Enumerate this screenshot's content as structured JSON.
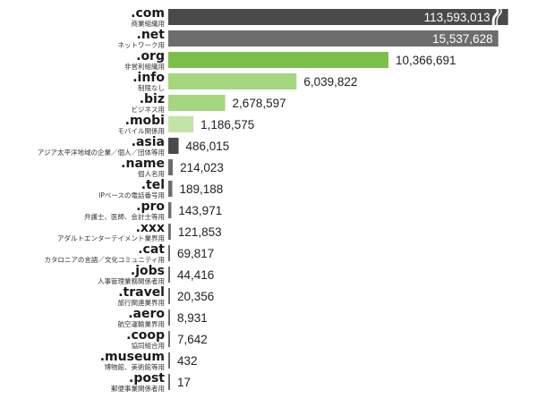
{
  "chart_data": {
    "type": "bar",
    "orientation": "horizontal",
    "title": "",
    "xlabel": "",
    "ylabel": "",
    "axis_break": {
      "category": ".com",
      "shown_as_length_of": 16000000
    },
    "categories": [
      ".com",
      ".net",
      ".org",
      ".info",
      ".biz",
      ".mobi",
      ".asia",
      ".name",
      ".tel",
      ".pro",
      ".xxx",
      ".cat",
      ".jobs",
      ".travel",
      ".aero",
      ".coop",
      ".museum",
      ".post"
    ],
    "descriptions": [
      "商業組織用",
      "ネットワーク用",
      "非営利組織用",
      "制限なし",
      "ビジネス用",
      "モバイル関係用",
      "アジア太平洋地域の企業／個人／団体等用",
      "個人名用",
      "IPベースの電話番号用",
      "弁護士、医師、会計士等用",
      "アダルトエンターテイメント業界用",
      "カタロニアの言語／文化コミュニティ用",
      "人事管理業務関係者用",
      "旅行関連業界用",
      "航空運輸業界用",
      "協同組合用",
      "博物館、美術館等用",
      "郵便事業関係者用"
    ],
    "values": [
      113593013,
      15537628,
      10366691,
      6039822,
      2678597,
      1186575,
      486015,
      214023,
      189188,
      143971,
      121853,
      69817,
      44416,
      20356,
      8931,
      7642,
      432,
      17
    ],
    "value_labels": [
      "113,593,013",
      "15,537,628",
      "10,366,691",
      "6,039,822",
      "2,678,597",
      "1,186,575",
      "486,015",
      "214,023",
      "189,188",
      "143,971",
      "121,853",
      "69,817",
      "44,416",
      "20,356",
      "8,931",
      "7,642",
      "432",
      "17"
    ],
    "colors": [
      "#4a4a4a",
      "#6d6d6d",
      "#7cc04b",
      "#a6d77f",
      "#a6d77f",
      "#c3e4a8",
      "#4a4a4a",
      "#6d6d6d",
      "#6d6d6d",
      "#6d6d6d",
      "#6d6d6d",
      "#6d6d6d",
      "#6d6d6d",
      "#6d6d6d",
      "#6d6d6d",
      "#6d6d6d",
      "#6d6d6d",
      "#6d6d6d"
    ],
    "grid": false,
    "legend": "none"
  }
}
